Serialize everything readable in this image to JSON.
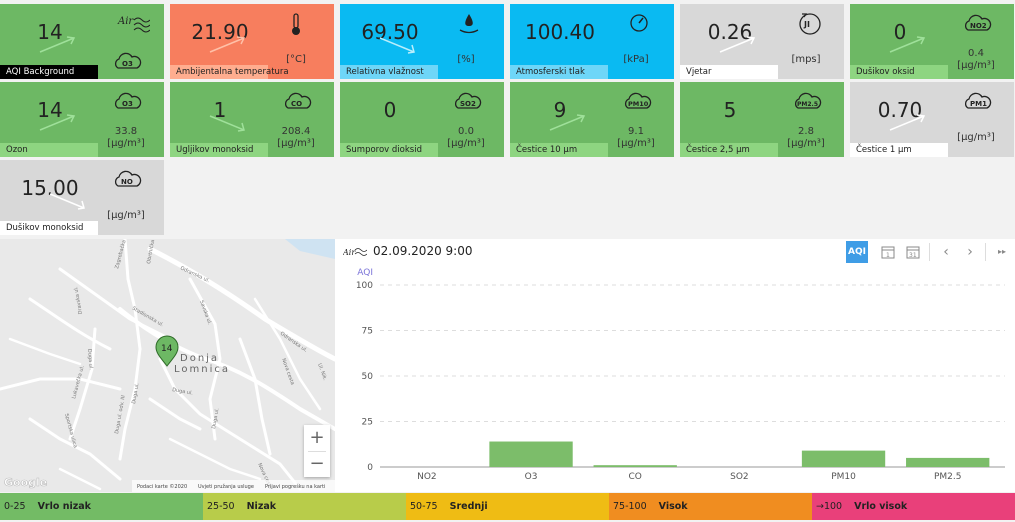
{
  "tiles": [
    {
      "id": "aqi",
      "value": "14",
      "unit": "",
      "label": "AQI Background"
    },
    {
      "id": "temp",
      "value": "21.90",
      "unit": "[°C]",
      "label": "Ambijentalna temperatura"
    },
    {
      "id": "hum",
      "value": "69.50",
      "unit": "[%]",
      "label": "Relativna vlažnost"
    },
    {
      "id": "press",
      "value": "100.40",
      "unit": "[kPa]",
      "label": "Atmosferski tlak"
    },
    {
      "id": "wind",
      "value": "0.26",
      "unit": "[mps]",
      "label": "Vjetar"
    },
    {
      "id": "no2",
      "value": "0",
      "unit": "0.4",
      "unit2": "[μg/m³]",
      "label": "Dušikov oksid"
    },
    {
      "id": "o3",
      "value": "14",
      "unit": "33.8",
      "unit2": "[μg/m³]",
      "label": "Ozon"
    },
    {
      "id": "co",
      "value": "1",
      "unit": "208.4",
      "unit2": "[μg/m³]",
      "label": "Ugljikov monoksid"
    },
    {
      "id": "so2",
      "value": "0",
      "unit": "0.0",
      "unit2": "[μg/m³]",
      "label": "Sumporov dioksid"
    },
    {
      "id": "pm10",
      "value": "9",
      "unit": "9.1",
      "unit2": "[μg/m³]",
      "label": "Čestice 10 μm"
    },
    {
      "id": "pm25",
      "value": "5",
      "unit": "2.8",
      "unit2": "[μg/m³]",
      "label": "Čestice 2,5 μm"
    },
    {
      "id": "pm1",
      "value": "0.70",
      "unit": "[μg/m³]",
      "label": "Čestice 1 μm"
    },
    {
      "id": "no",
      "value": "15.00",
      "unit": "[μg/m³]",
      "label": "Dušikov monoksid"
    }
  ],
  "icons": {
    "o3": "O3",
    "co": "CO",
    "so2": "SO2",
    "pm10": "PM10",
    "pm25": "PM2.5",
    "pm1": "PM1",
    "no2": "NO2",
    "no": "NO",
    "wind": "JI"
  },
  "map": {
    "marker_value": "14",
    "place_line1": "Donja",
    "place_line2": "Lomnica",
    "zoom_in": "+",
    "zoom_out": "−",
    "google": "Google",
    "attribution": "Podaci karte ©2020",
    "terms": "Uvjeti pružanja usluge",
    "report": "Prijavi pogrešku na karti",
    "streets": [
      "Odranska ul.",
      "Odranska ul.",
      "Zagrebačka ul.",
      "Obrtnička ul.",
      "Savska ul.",
      "Stadionska ul.",
      "Dravska ul.",
      "Lukavečka ul.",
      "Sportska ulica",
      "Duga ul.",
      "Duga ul. odv. III",
      "Duga ul.",
      "Duga ul.",
      "Duga ul.",
      "Nova cesta",
      "Nova cesta",
      "Ul. Nik."
    ]
  },
  "chart_header": {
    "datetime": "02.09.2020 9:00",
    "btn_aqi": "AQI",
    "btn_day": "1",
    "btn_month": "31",
    "btn_prev": "‹",
    "btn_next": "›",
    "btn_last": "▸▸"
  },
  "chart_data": {
    "type": "bar",
    "ylabel": "AQI",
    "categories": [
      "NO2",
      "O3",
      "CO",
      "SO2",
      "PM10",
      "PM2.5"
    ],
    "values": [
      0,
      14,
      1,
      0,
      9,
      5
    ],
    "ylim": [
      0,
      100
    ],
    "yticks": [
      "0",
      "25",
      "50",
      "75",
      "100"
    ],
    "grid": true,
    "color": "#7cbd6a"
  },
  "legend": [
    {
      "range": "0-25",
      "label": "Vrlo nizak",
      "color": "#73bb65"
    },
    {
      "range": "25-50",
      "label": "Nizak",
      "color": "#b8cc4a"
    },
    {
      "range": "50-75",
      "label": "Srednji",
      "color": "#efbc14"
    },
    {
      "range": "75-100",
      "label": "Visok",
      "color": "#f08d20"
    },
    {
      "range": "→100",
      "label": "Vrlo visok",
      "color": "#e9407a"
    }
  ]
}
